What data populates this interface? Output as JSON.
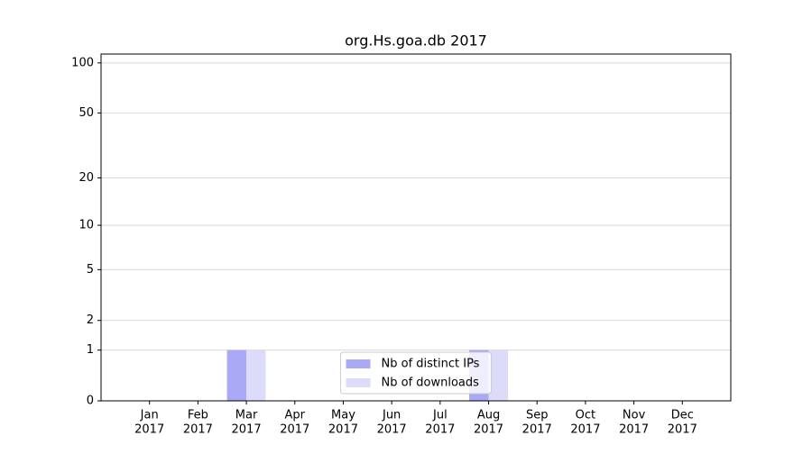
{
  "chart_data": {
    "type": "bar",
    "title": "org.Hs.goa.db 2017",
    "categories": [
      [
        "Jan",
        "2017"
      ],
      [
        "Feb",
        "2017"
      ],
      [
        "Mar",
        "2017"
      ],
      [
        "Apr",
        "2017"
      ],
      [
        "May",
        "2017"
      ],
      [
        "Jun",
        "2017"
      ],
      [
        "Jul",
        "2017"
      ],
      [
        "Aug",
        "2017"
      ],
      [
        "Sep",
        "2017"
      ],
      [
        "Oct",
        "2017"
      ],
      [
        "Nov",
        "2017"
      ],
      [
        "Dec",
        "2017"
      ]
    ],
    "series": [
      {
        "name": "Nb of distinct IPs",
        "color": "#a9a9f5",
        "values": [
          0,
          0,
          1,
          0,
          0,
          0,
          0,
          1,
          0,
          0,
          0,
          0
        ]
      },
      {
        "name": "Nb of downloads",
        "color": "#dcdcfa",
        "values": [
          0,
          0,
          1,
          0,
          0,
          0,
          0,
          1,
          0,
          0,
          0,
          0
        ]
      }
    ],
    "yscale": "log1p",
    "ylim": [
      0,
      113
    ],
    "yticks": [
      0,
      1,
      2,
      5,
      10,
      20,
      50,
      100
    ],
    "grid": true,
    "legend": "lower center"
  }
}
